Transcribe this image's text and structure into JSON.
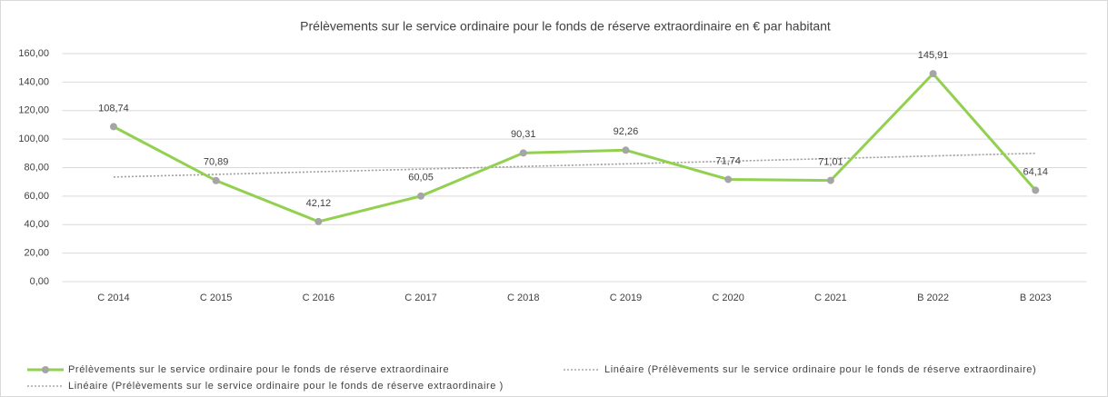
{
  "chart_data": {
    "type": "line",
    "title": "Prélèvements sur le service ordinaire pour le fonds de réserve extraordinaire en € par habitant",
    "categories": [
      "C 2014",
      "C 2015",
      "C 2016",
      "C 2017",
      "C 2018",
      "C 2019",
      "C 2020",
      "C 2021",
      "B 2022",
      "B 2023"
    ],
    "series": [
      {
        "name": "Prélèvements sur le service ordinaire pour le fonds de réserve extraordinaire",
        "color": "#92d050",
        "marker_color": "#a5a5a5",
        "values": [
          108.74,
          70.89,
          42.12,
          60.05,
          90.31,
          92.26,
          71.74,
          71.01,
          145.91,
          64.14
        ],
        "value_labels": [
          "108,74",
          "70,89",
          "42,12",
          "60,05",
          "90,31",
          "92,26",
          "71,74",
          "71,01",
          "145,91",
          "64,14"
        ]
      },
      {
        "name": "Linéaire (Prélèvements sur le service ordinaire pour le fonds de réserve extraordinaire)",
        "color": "#a5a5a5",
        "dashed": true,
        "values": [
          73.4,
          75.25,
          77.1,
          78.95,
          80.79,
          82.64,
          84.49,
          86.34,
          88.19,
          90.04
        ]
      },
      {
        "name": "Linéaire (Prélèvements sur le service ordinaire pour le fonds de réserve extraordinaire )",
        "color": "#a5a5a5",
        "dashed": true,
        "values": [
          73.4,
          75.25,
          77.1,
          78.95,
          80.79,
          82.64,
          84.49,
          86.34,
          88.19,
          90.04
        ]
      }
    ],
    "ylim": [
      0,
      160
    ],
    "yticks": [
      {
        "value": 0,
        "label": "0,00"
      },
      {
        "value": 20,
        "label": "20,00"
      },
      {
        "value": 40,
        "label": "40,00"
      },
      {
        "value": 60,
        "label": "60,00"
      },
      {
        "value": 80,
        "label": "80,00"
      },
      {
        "value": 100,
        "label": "100,00"
      },
      {
        "value": 120,
        "label": "120,00"
      },
      {
        "value": 140,
        "label": "140,00"
      },
      {
        "value": 160,
        "label": "160,00"
      }
    ],
    "grid": true,
    "legend": "bottom"
  }
}
